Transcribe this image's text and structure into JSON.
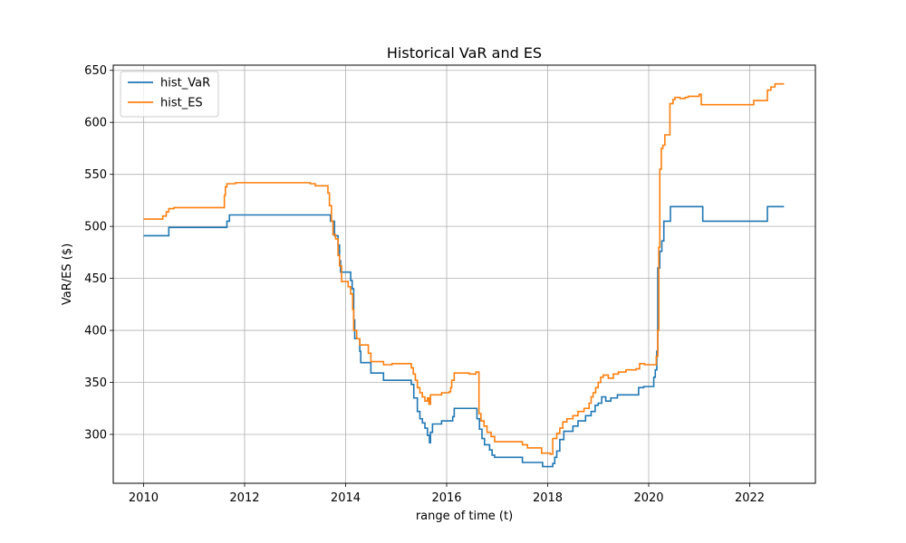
{
  "chart_data": {
    "type": "line",
    "title": "Historical VaR and ES",
    "xlabel": "range of time (t)",
    "ylabel": "VaR/ES ($)",
    "xlim": [
      2009.4,
      2023.3
    ],
    "ylim": [
      253,
      655
    ],
    "xticks": [
      2010,
      2012,
      2014,
      2016,
      2018,
      2020,
      2022
    ],
    "yticks": [
      300,
      350,
      400,
      450,
      500,
      550,
      600,
      650
    ],
    "grid": true,
    "legend_position": "top-left",
    "series": [
      {
        "name": "hist_VaR",
        "color": "#1f77b4",
        "step": true,
        "points": [
          [
            2010.0,
            491
          ],
          [
            2010.5,
            499
          ],
          [
            2011.65,
            505
          ],
          [
            2011.7,
            511
          ],
          [
            2013.7,
            505
          ],
          [
            2013.78,
            491
          ],
          [
            2013.85,
            482
          ],
          [
            2013.88,
            467
          ],
          [
            2013.9,
            456
          ],
          [
            2014.1,
            448
          ],
          [
            2014.13,
            440
          ],
          [
            2014.16,
            410
          ],
          [
            2014.18,
            392
          ],
          [
            2014.28,
            380
          ],
          [
            2014.3,
            369
          ],
          [
            2014.5,
            359
          ],
          [
            2014.75,
            352
          ],
          [
            2015.3,
            348
          ],
          [
            2015.35,
            335
          ],
          [
            2015.42,
            322
          ],
          [
            2015.47,
            315
          ],
          [
            2015.52,
            311
          ],
          [
            2015.57,
            306
          ],
          [
            2015.62,
            299
          ],
          [
            2015.66,
            292
          ],
          [
            2015.68,
            302
          ],
          [
            2015.72,
            310
          ],
          [
            2015.9,
            313
          ],
          [
            2016.12,
            317
          ],
          [
            2016.15,
            325
          ],
          [
            2016.6,
            315
          ],
          [
            2016.65,
            305
          ],
          [
            2016.7,
            296
          ],
          [
            2016.75,
            290
          ],
          [
            2016.85,
            285
          ],
          [
            2016.9,
            280
          ],
          [
            2016.95,
            278
          ],
          [
            2017.5,
            273
          ],
          [
            2017.9,
            269
          ],
          [
            2018.1,
            272
          ],
          [
            2018.14,
            278
          ],
          [
            2018.18,
            284
          ],
          [
            2018.24,
            295
          ],
          [
            2018.32,
            303
          ],
          [
            2018.5,
            308
          ],
          [
            2018.6,
            313
          ],
          [
            2018.75,
            318
          ],
          [
            2018.86,
            322
          ],
          [
            2018.94,
            328
          ],
          [
            2019.0,
            330
          ],
          [
            2019.07,
            336
          ],
          [
            2019.15,
            332
          ],
          [
            2019.25,
            335
          ],
          [
            2019.38,
            338
          ],
          [
            2019.8,
            345
          ],
          [
            2019.9,
            346
          ],
          [
            2020.1,
            355
          ],
          [
            2020.13,
            362
          ],
          [
            2020.16,
            380
          ],
          [
            2020.18,
            460
          ],
          [
            2020.22,
            476
          ],
          [
            2020.26,
            486
          ],
          [
            2020.3,
            505
          ],
          [
            2020.43,
            519
          ],
          [
            2021.07,
            505
          ],
          [
            2022.35,
            519
          ],
          [
            2022.68,
            519
          ]
        ]
      },
      {
        "name": "hist_ES",
        "color": "#ff7f0e",
        "step": true,
        "points": [
          [
            2010.0,
            507
          ],
          [
            2010.38,
            510
          ],
          [
            2010.45,
            514
          ],
          [
            2010.5,
            517
          ],
          [
            2010.6,
            518
          ],
          [
            2011.6,
            530
          ],
          [
            2011.62,
            538
          ],
          [
            2011.65,
            541
          ],
          [
            2011.82,
            542
          ],
          [
            2013.3,
            541
          ],
          [
            2013.4,
            539
          ],
          [
            2013.65,
            532
          ],
          [
            2013.68,
            520
          ],
          [
            2013.72,
            505
          ],
          [
            2013.75,
            492
          ],
          [
            2013.8,
            488
          ],
          [
            2013.85,
            472
          ],
          [
            2013.88,
            462
          ],
          [
            2013.92,
            447
          ],
          [
            2014.05,
            442
          ],
          [
            2014.1,
            435
          ],
          [
            2014.14,
            420
          ],
          [
            2014.16,
            400
          ],
          [
            2014.22,
            392
          ],
          [
            2014.28,
            386
          ],
          [
            2014.45,
            378
          ],
          [
            2014.5,
            370
          ],
          [
            2014.75,
            367
          ],
          [
            2014.92,
            368
          ],
          [
            2015.3,
            364
          ],
          [
            2015.34,
            358
          ],
          [
            2015.38,
            352
          ],
          [
            2015.42,
            345
          ],
          [
            2015.47,
            340
          ],
          [
            2015.52,
            336
          ],
          [
            2015.57,
            332
          ],
          [
            2015.62,
            335
          ],
          [
            2015.65,
            329
          ],
          [
            2015.68,
            338
          ],
          [
            2015.8,
            338
          ],
          [
            2015.9,
            340
          ],
          [
            2016.05,
            341
          ],
          [
            2016.08,
            345
          ],
          [
            2016.1,
            352
          ],
          [
            2016.15,
            359
          ],
          [
            2016.45,
            358
          ],
          [
            2016.58,
            360
          ],
          [
            2016.64,
            320
          ],
          [
            2016.68,
            313
          ],
          [
            2016.74,
            308
          ],
          [
            2016.8,
            302
          ],
          [
            2016.88,
            298
          ],
          [
            2016.95,
            293
          ],
          [
            2017.5,
            290
          ],
          [
            2017.6,
            287
          ],
          [
            2017.8,
            287
          ],
          [
            2017.88,
            282
          ],
          [
            2018.05,
            281
          ],
          [
            2018.1,
            296
          ],
          [
            2018.18,
            301
          ],
          [
            2018.24,
            306
          ],
          [
            2018.3,
            312
          ],
          [
            2018.38,
            315
          ],
          [
            2018.5,
            318
          ],
          [
            2018.6,
            322
          ],
          [
            2018.72,
            325
          ],
          [
            2018.82,
            330
          ],
          [
            2018.86,
            336
          ],
          [
            2018.9,
            340
          ],
          [
            2018.95,
            345
          ],
          [
            2019.0,
            350
          ],
          [
            2019.05,
            355
          ],
          [
            2019.1,
            357
          ],
          [
            2019.2,
            354
          ],
          [
            2019.3,
            358
          ],
          [
            2019.4,
            360
          ],
          [
            2019.55,
            362
          ],
          [
            2019.75,
            363
          ],
          [
            2019.82,
            368
          ],
          [
            2019.92,
            367
          ],
          [
            2020.15,
            375
          ],
          [
            2020.18,
            400
          ],
          [
            2020.2,
            480
          ],
          [
            2020.22,
            555
          ],
          [
            2020.25,
            575
          ],
          [
            2020.28,
            578
          ],
          [
            2020.32,
            588
          ],
          [
            2020.42,
            618
          ],
          [
            2020.48,
            622
          ],
          [
            2020.52,
            624
          ],
          [
            2020.62,
            623
          ],
          [
            2020.72,
            624
          ],
          [
            2020.78,
            625
          ],
          [
            2021.0,
            627
          ],
          [
            2021.04,
            617
          ],
          [
            2021.2,
            617
          ],
          [
            2022.08,
            621
          ],
          [
            2022.35,
            631
          ],
          [
            2022.42,
            634
          ],
          [
            2022.5,
            637
          ],
          [
            2022.68,
            637
          ]
        ]
      }
    ]
  }
}
